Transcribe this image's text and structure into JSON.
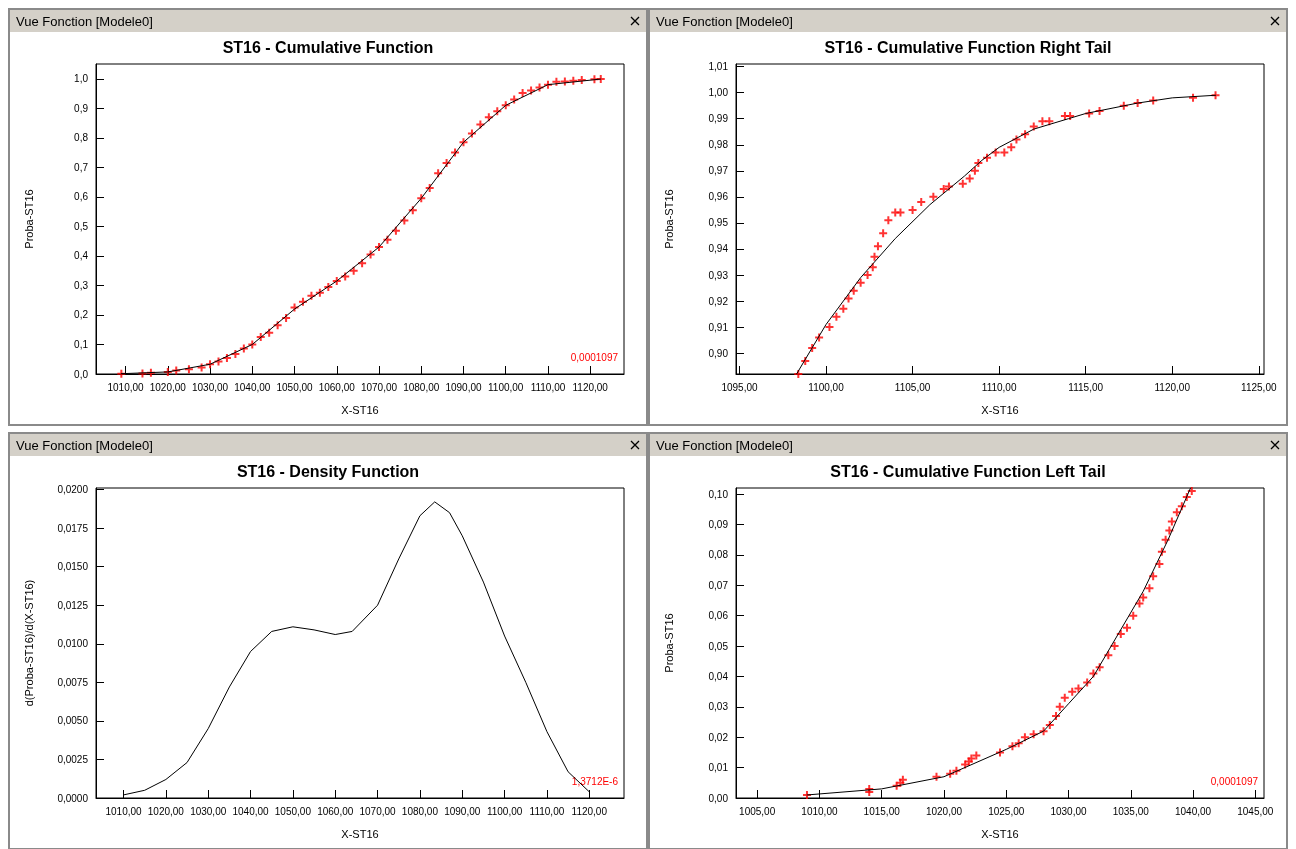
{
  "chart_data": [
    {
      "type": "scatter",
      "title": "ST16 - Cumulative Function",
      "xlabel": "X-ST16",
      "ylabel": "Proba-ST16",
      "annotations": [
        "Vue Fonction [Modele0]",
        "0,0001097"
      ],
      "grid": false,
      "xlim": [
        1003,
        1128
      ],
      "ylim": [
        0,
        1.05
      ],
      "xticks": [
        {
          "value": 1010,
          "label": "1010,00"
        },
        {
          "value": 1020,
          "label": "1020,00"
        },
        {
          "value": 1030,
          "label": "1030,00"
        },
        {
          "value": 1040,
          "label": "1040,00"
        },
        {
          "value": 1050,
          "label": "1050,00"
        },
        {
          "value": 1060,
          "label": "1060,00"
        },
        {
          "value": 1070,
          "label": "1070,00"
        },
        {
          "value": 1080,
          "label": "1080,00"
        },
        {
          "value": 1090,
          "label": "1090,00"
        },
        {
          "value": 1100,
          "label": "1100,00"
        },
        {
          "value": 1110,
          "label": "1110,00"
        },
        {
          "value": 1120,
          "label": "1120,00"
        }
      ],
      "yticks": [
        {
          "value": 0,
          "label": "0,0"
        },
        {
          "value": 0.1,
          "label": "0,1"
        },
        {
          "value": 0.2,
          "label": "0,2"
        },
        {
          "value": 0.3,
          "label": "0,3"
        },
        {
          "value": 0.4,
          "label": "0,4"
        },
        {
          "value": 0.5,
          "label": "0,5"
        },
        {
          "value": 0.6,
          "label": "0,6"
        },
        {
          "value": 0.7,
          "label": "0,7"
        },
        {
          "value": 0.8,
          "label": "0,8"
        },
        {
          "value": 0.9,
          "label": "0,9"
        },
        {
          "value": 1,
          "label": "1,0"
        }
      ],
      "series": [
        {
          "type": "line",
          "color": "#000000",
          "marker": "none",
          "line_style": "solid",
          "x": [
            1009,
            1020,
            1030,
            1040,
            1050,
            1060,
            1070,
            1080,
            1090,
            1100,
            1110,
            1122.5
          ],
          "values": [
            0.001,
            0.007,
            0.033,
            0.1,
            0.22,
            0.315,
            0.43,
            0.595,
            0.785,
            0.91,
            0.98,
            0.999
          ]
        },
        {
          "color": "#ff0000",
          "marker": "cross",
          "x": [
            1009,
            1014,
            1016,
            1020,
            1022,
            1025,
            1028,
            1030,
            1032,
            1034,
            1036,
            1038,
            1040,
            1042,
            1044,
            1046,
            1048,
            1050,
            1052,
            1054,
            1056,
            1058,
            1060,
            1062,
            1064,
            1066,
            1068,
            1070,
            1072,
            1074,
            1076,
            1078,
            1080,
            1082,
            1084,
            1086,
            1088,
            1090,
            1092,
            1094,
            1096,
            1098,
            1100,
            1102,
            1104,
            1106,
            1108,
            1110,
            1112,
            1114,
            1116,
            1118,
            1121,
            1122.5
          ],
          "values": [
            0.001,
            0.002,
            0.004,
            0.007,
            0.012,
            0.016,
            0.022,
            0.033,
            0.042,
            0.054,
            0.068,
            0.086,
            0.1,
            0.125,
            0.14,
            0.165,
            0.19,
            0.225,
            0.245,
            0.265,
            0.275,
            0.295,
            0.315,
            0.33,
            0.35,
            0.375,
            0.405,
            0.43,
            0.455,
            0.485,
            0.52,
            0.555,
            0.595,
            0.63,
            0.68,
            0.715,
            0.75,
            0.785,
            0.815,
            0.845,
            0.87,
            0.89,
            0.91,
            0.93,
            0.952,
            0.96,
            0.97,
            0.98,
            0.99,
            0.991,
            0.993,
            0.996,
            0.998,
            0.999
          ]
        }
      ]
    },
    {
      "type": "scatter",
      "title": "ST16 - Cumulative Function Right Tail",
      "xlabel": "X-ST16",
      "ylabel": "Proba-ST16",
      "annotations": [
        "Vue Fonction [Modele0]"
      ],
      "grid": false,
      "xlim": [
        1094.8,
        1125.3
      ],
      "ylim": [
        0.892,
        1.011
      ],
      "xticks": [
        {
          "value": 1095,
          "label": "1095,00"
        },
        {
          "value": 1100,
          "label": "1100,00"
        },
        {
          "value": 1105,
          "label": "1105,00"
        },
        {
          "value": 1110,
          "label": "1110,00"
        },
        {
          "value": 1115,
          "label": "1115,00"
        },
        {
          "value": 1120,
          "label": "1120,00"
        },
        {
          "value": 1125,
          "label": "1125,00"
        }
      ],
      "yticks": [
        {
          "value": 0.9,
          "label": "0,90"
        },
        {
          "value": 0.91,
          "label": "0,91"
        },
        {
          "value": 0.92,
          "label": "0,92"
        },
        {
          "value": 0.93,
          "label": "0,93"
        },
        {
          "value": 0.94,
          "label": "0,94"
        },
        {
          "value": 0.95,
          "label": "0,95"
        },
        {
          "value": 0.96,
          "label": "0,96"
        },
        {
          "value": 0.97,
          "label": "0,97"
        },
        {
          "value": 0.98,
          "label": "0,98"
        },
        {
          "value": 0.99,
          "label": "0,99"
        },
        {
          "value": 1,
          "label": "1,00"
        },
        {
          "value": 1.01,
          "label": "1,01"
        }
      ],
      "series": [
        {
          "type": "line",
          "color": "#000000",
          "marker": "none",
          "line_style": "solid",
          "x": [
            1098.3,
            1100,
            1102,
            1104,
            1106,
            1108,
            1109,
            1110,
            1112,
            1114,
            1115,
            1118,
            1120,
            1122.5
          ],
          "values": [
            0.892,
            0.911,
            0.929,
            0.944,
            0.957,
            0.968,
            0.974,
            0.979,
            0.986,
            0.99,
            0.992,
            0.996,
            0.998,
            0.999
          ]
        },
        {
          "color": "#ff0000",
          "marker": "cross",
          "x": [
            1098.4,
            1098.8,
            1099.2,
            1099.6,
            1100.2,
            1100.6,
            1101,
            1101.3,
            1101.6,
            1102,
            1102.4,
            1102.7,
            1102.8,
            1103,
            1103.3,
            1103.6,
            1104,
            1104.3,
            1105,
            1105.5,
            1106.2,
            1106.8,
            1107.1,
            1107.9,
            1108.3,
            1108.6,
            1108.8,
            1109.3,
            1109.8,
            1110.3,
            1110.7,
            1111,
            1111.5,
            1112,
            1112.5,
            1112.9,
            1113.8,
            1114.1,
            1115.2,
            1115.8,
            1117.2,
            1118,
            1118.9,
            1121.2,
            1122.5
          ],
          "values": [
            0.892,
            0.897,
            0.902,
            0.906,
            0.91,
            0.914,
            0.917,
            0.921,
            0.924,
            0.927,
            0.93,
            0.933,
            0.937,
            0.941,
            0.946,
            0.951,
            0.954,
            0.954,
            0.955,
            0.958,
            0.96,
            0.963,
            0.964,
            0.965,
            0.967,
            0.97,
            0.973,
            0.975,
            0.977,
            0.977,
            0.979,
            0.982,
            0.984,
            0.987,
            0.989,
            0.989,
            0.991,
            0.991,
            0.992,
            0.993,
            0.995,
            0.996,
            0.997,
            0.998,
            0.999
          ]
        }
      ]
    },
    {
      "type": "line",
      "title": "ST16 - Density Function",
      "xlabel": "X-ST16",
      "ylabel": "d(Proba-ST16)/d(X-ST16)",
      "annotations": [
        "Vue Fonction [Modele0]",
        "1,3712E-6"
      ],
      "grid": false,
      "xlim": [
        1003.5,
        1128.2
      ],
      "ylim": [
        0,
        0.0201
      ],
      "xticks": [
        {
          "value": 1010,
          "label": "1010,00"
        },
        {
          "value": 1020,
          "label": "1020,00"
        },
        {
          "value": 1030,
          "label": "1030,00"
        },
        {
          "value": 1040,
          "label": "1040,00"
        },
        {
          "value": 1050,
          "label": "1050,00"
        },
        {
          "value": 1060,
          "label": "1060,00"
        },
        {
          "value": 1070,
          "label": "1070,00"
        },
        {
          "value": 1080,
          "label": "1080,00"
        },
        {
          "value": 1090,
          "label": "1090,00"
        },
        {
          "value": 1100,
          "label": "1100,00"
        },
        {
          "value": 1110,
          "label": "1110,00"
        },
        {
          "value": 1120,
          "label": "1120,00"
        }
      ],
      "yticks": [
        {
          "value": 0,
          "label": "0,0000"
        },
        {
          "value": 0.0025,
          "label": "0,0025"
        },
        {
          "value": 0.005,
          "label": "0,0050"
        },
        {
          "value": 0.0075,
          "label": "0,0075"
        },
        {
          "value": 0.01,
          "label": "0,0100"
        },
        {
          "value": 0.0125,
          "label": "0,0125"
        },
        {
          "value": 0.015,
          "label": "0,0150"
        },
        {
          "value": 0.0175,
          "label": "0,0175"
        },
        {
          "value": 0.02,
          "label": "0,0200"
        }
      ],
      "series": [
        {
          "color": "#000000",
          "marker": "none",
          "line_style": "solid",
          "x": [
            1010,
            1015,
            1020,
            1025,
            1030,
            1035,
            1040,
            1045,
            1050,
            1055,
            1060,
            1064,
            1070,
            1075,
            1080,
            1083.5,
            1087,
            1090,
            1095,
            1100,
            1105,
            1110,
            1115,
            1120
          ],
          "values": [
            0.0002,
            0.0005,
            0.0012,
            0.0023,
            0.0045,
            0.0072,
            0.0095,
            0.0108,
            0.0111,
            0.0109,
            0.0106,
            0.0108,
            0.0125,
            0.0155,
            0.0183,
            0.0192,
            0.0185,
            0.017,
            0.014,
            0.0105,
            0.0075,
            0.0043,
            0.0017,
            0.0004
          ]
        }
      ]
    },
    {
      "type": "scatter",
      "title": "ST16 - Cumulative Function Left Tail",
      "xlabel": "X-ST16",
      "ylabel": "Proba-ST16",
      "annotations": [
        "Vue Fonction [Modele0]",
        "0,0001097"
      ],
      "grid": false,
      "xlim": [
        1003.3,
        1045.7
      ],
      "ylim": [
        0,
        0.102
      ],
      "xticks": [
        {
          "value": 1005,
          "label": "1005,00"
        },
        {
          "value": 1010,
          "label": "1010,00"
        },
        {
          "value": 1015,
          "label": "1015,00"
        },
        {
          "value": 1020,
          "label": "1020,00"
        },
        {
          "value": 1025,
          "label": "1025,00"
        },
        {
          "value": 1030,
          "label": "1030,00"
        },
        {
          "value": 1035,
          "label": "1035,00"
        },
        {
          "value": 1040,
          "label": "1040,00"
        },
        {
          "value": 1045,
          "label": "1045,00"
        }
      ],
      "yticks": [
        {
          "value": 0,
          "label": "0,00"
        },
        {
          "value": 0.01,
          "label": "0,01"
        },
        {
          "value": 0.02,
          "label": "0,02"
        },
        {
          "value": 0.03,
          "label": "0,03"
        },
        {
          "value": 0.04,
          "label": "0,04"
        },
        {
          "value": 0.05,
          "label": "0,05"
        },
        {
          "value": 0.06,
          "label": "0,06"
        },
        {
          "value": 0.07,
          "label": "0,07"
        },
        {
          "value": 0.08,
          "label": "0,08"
        },
        {
          "value": 0.09,
          "label": "0,09"
        },
        {
          "value": 0.1,
          "label": "0,10"
        }
      ],
      "series": [
        {
          "type": "line",
          "color": "#000000",
          "marker": "none",
          "line_style": "solid",
          "x": [
            1009,
            1015,
            1020,
            1025,
            1028,
            1030,
            1032,
            1034,
            1036,
            1038,
            1039.8
          ],
          "values": [
            0.001,
            0.003,
            0.007,
            0.016,
            0.022,
            0.031,
            0.04,
            0.054,
            0.068,
            0.085,
            0.102
          ]
        },
        {
          "color": "#ff0000",
          "marker": "cross",
          "x": [
            1009,
            1014,
            1014,
            1016.2,
            1016.5,
            1016.7,
            1019.4,
            1020.5,
            1021,
            1021.7,
            1022,
            1022.2,
            1022.6,
            1024.5,
            1025.5,
            1026,
            1026.5,
            1027.2,
            1028,
            1028.5,
            1029,
            1029.3,
            1029.7,
            1030.3,
            1030.8,
            1031.5,
            1032,
            1032.5,
            1033.2,
            1033.7,
            1034.2,
            1034.7,
            1035.2,
            1035.7,
            1036,
            1036.5,
            1036.8,
            1037.3,
            1037.5,
            1037.8,
            1038.1,
            1038.3,
            1038.7,
            1039.1,
            1039.5,
            1039.9
          ],
          "values": [
            0.001,
            0.002,
            0.003,
            0.004,
            0.005,
            0.006,
            0.007,
            0.008,
            0.009,
            0.011,
            0.012,
            0.013,
            0.014,
            0.015,
            0.017,
            0.018,
            0.02,
            0.021,
            0.022,
            0.024,
            0.027,
            0.03,
            0.033,
            0.035,
            0.036,
            0.038,
            0.041,
            0.043,
            0.047,
            0.05,
            0.054,
            0.056,
            0.06,
            0.064,
            0.066,
            0.069,
            0.073,
            0.077,
            0.081,
            0.085,
            0.088,
            0.091,
            0.094,
            0.096,
            0.099,
            0.101
          ]
        }
      ]
    }
  ]
}
